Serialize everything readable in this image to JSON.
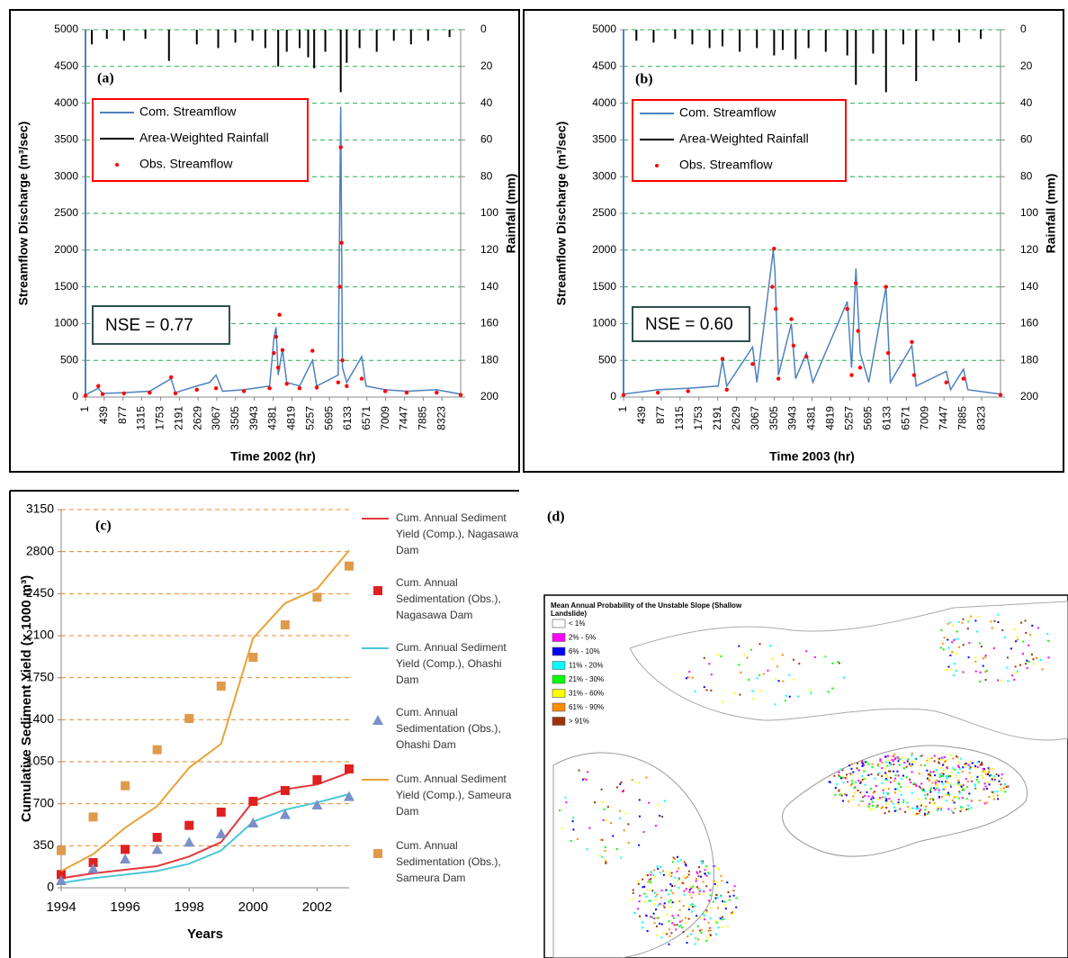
{
  "chart_data": [
    {
      "type": "line",
      "panel_label": "(a)",
      "annotation": "NSE = 0.77",
      "x_label": "Time 2002 (hr)",
      "y_label": "Streamflow Discharge (m³/sec)",
      "y2_label": "Rainfall (mm)",
      "xlim": [
        1,
        8760
      ],
      "xticks": [
        1,
        439,
        877,
        1315,
        1753,
        2191,
        2629,
        3067,
        3505,
        3943,
        4381,
        4819,
        5257,
        5695,
        6133,
        6571,
        7009,
        7447,
        7885,
        8323
      ],
      "ylim": [
        0,
        5000
      ],
      "yticks": [
        0,
        500,
        1000,
        1500,
        2000,
        2500,
        3000,
        3500,
        4000,
        4500,
        5000
      ],
      "y2lim": [
        0,
        200
      ],
      "y2ticks": [
        0,
        20,
        40,
        60,
        80,
        100,
        120,
        140,
        160,
        180,
        200
      ],
      "y2_inverted": true,
      "grid": true,
      "grid_color": "#22b04c",
      "legend": "upper left",
      "legend_border": "#ff0000",
      "series": [
        {
          "name": "Com. Streamflow",
          "style": "line",
          "color": "#4f81bd",
          "x": [
            1,
            300,
            400,
            900,
            1500,
            2000,
            2100,
            2600,
            2900,
            3050,
            3200,
            3700,
            4300,
            4400,
            4450,
            4500,
            4600,
            4700,
            5000,
            5300,
            5400,
            5900,
            5960,
            6000,
            6100,
            6300,
            6450,
            6550,
            7000,
            7500,
            8200,
            8760
          ],
          "values": [
            30,
            120,
            50,
            60,
            80,
            250,
            60,
            150,
            200,
            300,
            80,
            100,
            150,
            800,
            950,
            300,
            650,
            200,
            150,
            500,
            150,
            300,
            3950,
            400,
            200,
            400,
            550,
            150,
            100,
            80,
            100,
            40
          ]
        },
        {
          "name": "Area-Weighted Rainfall",
          "style": "bars",
          "axis": "y2",
          "color": "#000000",
          "x": [
            150,
            500,
            900,
            1400,
            1950,
            2600,
            3100,
            3500,
            3900,
            4200,
            4500,
            4700,
            5000,
            5200,
            5340,
            5600,
            5960,
            6100,
            6400,
            6800,
            7200,
            7600,
            8000,
            8500
          ],
          "values": [
            8,
            5,
            6,
            5,
            17,
            8,
            10,
            7,
            6,
            10,
            20,
            12,
            10,
            15,
            21,
            12,
            34,
            18,
            10,
            12,
            6,
            8,
            6,
            4
          ]
        },
        {
          "name": "Obs. Streamflow",
          "style": "dots",
          "color": "#ff0000",
          "x": [
            1,
            300,
            400,
            900,
            1500,
            2000,
            2100,
            2600,
            3050,
            3700,
            4300,
            4400,
            4450,
            4500,
            4530,
            4600,
            4700,
            5000,
            5300,
            5400,
            5900,
            5940,
            5960,
            5980,
            6000,
            6100,
            6450,
            7000,
            7500,
            8200,
            8760
          ],
          "values": [
            20,
            150,
            40,
            50,
            60,
            270,
            50,
            100,
            120,
            80,
            120,
            600,
            820,
            400,
            1120,
            640,
            180,
            120,
            630,
            130,
            200,
            1500,
            3400,
            2100,
            500,
            150,
            250,
            80,
            60,
            60,
            30
          ]
        }
      ]
    },
    {
      "type": "line",
      "panel_label": "(b)",
      "annotation": "NSE = 0.60",
      "x_label": "Time 2003 (hr)",
      "y_label": "Streamflow Discharge (m³/sec)",
      "y2_label": "Rainfall (mm)",
      "xlim": [
        1,
        8760
      ],
      "xticks": [
        1,
        439,
        877,
        1315,
        1753,
        2191,
        2629,
        3067,
        3505,
        3943,
        4381,
        4819,
        5257,
        5695,
        6133,
        6571,
        7009,
        7447,
        7885,
        8323
      ],
      "ylim": [
        0,
        5000
      ],
      "yticks": [
        0,
        500,
        1000,
        1500,
        2000,
        2500,
        3000,
        3500,
        4000,
        4500,
        5000
      ],
      "y2lim": [
        0,
        200
      ],
      "y2ticks": [
        0,
        20,
        40,
        60,
        80,
        100,
        120,
        140,
        160,
        180,
        200
      ],
      "y2_inverted": true,
      "grid": true,
      "grid_color": "#22b04c",
      "legend": "upper left",
      "legend_border": "#ff0000",
      "series": [
        {
          "name": "Com. Streamflow",
          "style": "line",
          "color": "#4f81bd",
          "x": [
            1,
            800,
            1500,
            2200,
            2300,
            2400,
            3000,
            3100,
            3480,
            3520,
            3600,
            3900,
            4000,
            4250,
            4400,
            5200,
            5300,
            5400,
            5500,
            5700,
            6100,
            6200,
            6700,
            6800,
            7500,
            7600,
            7900,
            8000,
            8760
          ],
          "values": [
            40,
            100,
            120,
            150,
            500,
            150,
            680,
            200,
            2000,
            1700,
            300,
            1000,
            250,
            600,
            200,
            1300,
            400,
            1750,
            600,
            200,
            1500,
            200,
            700,
            150,
            350,
            100,
            380,
            100,
            40
          ]
        },
        {
          "name": "Area-Weighted Rainfall",
          "style": "bars",
          "axis": "y2",
          "color": "#000000",
          "x": [
            300,
            700,
            1200,
            1600,
            2000,
            2300,
            2700,
            3100,
            3500,
            3700,
            4000,
            4300,
            4700,
            5200,
            5400,
            5800,
            6100,
            6500,
            6800,
            7200,
            7800,
            8300
          ],
          "values": [
            6,
            7,
            5,
            8,
            10,
            9,
            12,
            10,
            14,
            11,
            16,
            10,
            12,
            14,
            30,
            13,
            34,
            8,
            28,
            6,
            7,
            5
          ]
        },
        {
          "name": "Obs. Streamflow",
          "style": "dots",
          "color": "#ff0000",
          "x": [
            1,
            800,
            1500,
            2300,
            2400,
            3000,
            3460,
            3500,
            3540,
            3600,
            3900,
            3950,
            4250,
            5200,
            5300,
            5400,
            5450,
            5500,
            6100,
            6150,
            6700,
            6750,
            7500,
            7900,
            8760
          ],
          "values": [
            30,
            60,
            80,
            520,
            100,
            450,
            1500,
            2020,
            1200,
            250,
            1060,
            700,
            550,
            1200,
            300,
            1550,
            900,
            400,
            1500,
            600,
            750,
            300,
            200,
            250,
            30
          ]
        }
      ]
    },
    {
      "type": "line",
      "panel_label": "(c)",
      "x_label": "Years",
      "y_label": "Cumulative Sediment Yield (x 1000 m³)",
      "x": [
        1994,
        1995,
        1996,
        1997,
        1998,
        1999,
        2000,
        2001,
        2002,
        2003
      ],
      "xlim": [
        1994,
        2003
      ],
      "xticks": [
        1994,
        1996,
        1998,
        2000,
        2002
      ],
      "ylim": [
        0,
        3150
      ],
      "yticks": [
        0,
        350,
        700,
        1050,
        1400,
        1750,
        2100,
        2450,
        2800,
        3150
      ],
      "grid": true,
      "grid_color": "#e8862a",
      "legend": "right",
      "series": [
        {
          "name": "Cum. Annual Sediment Yield (Comp.), Nagasawa Dam",
          "style": "line",
          "color": "#e0383a",
          "values": [
            80,
            120,
            150,
            180,
            260,
            380,
            720,
            820,
            860,
            960
          ]
        },
        {
          "name": "Cum. Annual Sedimentation (Obs.), Nagasawa Dam",
          "style": "markers",
          "marker": "square",
          "color": "#e02020",
          "values": [
            110,
            210,
            320,
            420,
            520,
            630,
            720,
            810,
            900,
            990
          ]
        },
        {
          "name": "Cum. Annual Sediment Yield (Comp.), Ohashi Dam",
          "style": "line",
          "color": "#4bc6d8",
          "values": [
            40,
            80,
            110,
            140,
            200,
            310,
            550,
            650,
            710,
            780
          ]
        },
        {
          "name": "Cum. Annual Sedimentation (Obs.), Ohashi Dam",
          "style": "markers",
          "marker": "triangle",
          "color": "#7b8fc8",
          "values": [
            60,
            160,
            240,
            320,
            380,
            450,
            540,
            610,
            690,
            760
          ]
        },
        {
          "name": "Cum. Annual Sediment Yield (Comp.), Sameura Dam",
          "style": "line",
          "color": "#e8a33a",
          "values": [
            140,
            280,
            500,
            680,
            1000,
            1200,
            2080,
            2370,
            2490,
            2810
          ]
        },
        {
          "name": "Cum. Annual Sedimentation (Obs.), Sameura Dam",
          "style": "markers",
          "marker": "square",
          "color": "#e09a4a",
          "values": [
            310,
            590,
            850,
            1150,
            1410,
            1680,
            1920,
            2190,
            2420,
            2680
          ]
        }
      ]
    }
  ],
  "map": {
    "label": "(d)",
    "legend_title": "Mean Annual Probability of the Unstable Slope (Shallow Landslide)",
    "classes": [
      {
        "label": "< 1%",
        "color": "#ffffff"
      },
      {
        "label": "2% - 5%",
        "color": "#ff00ff"
      },
      {
        "label": "6% - 10%",
        "color": "#0000ff"
      },
      {
        "label": "11% - 20%",
        "color": "#00ffff"
      },
      {
        "label": "21% - 30%",
        "color": "#00ff00"
      },
      {
        "label": "31% - 60%",
        "color": "#ffff00"
      },
      {
        "label": "61% - 90%",
        "color": "#ff8c00"
      },
      {
        "label": "> 91%",
        "color": "#a0320a"
      }
    ]
  }
}
